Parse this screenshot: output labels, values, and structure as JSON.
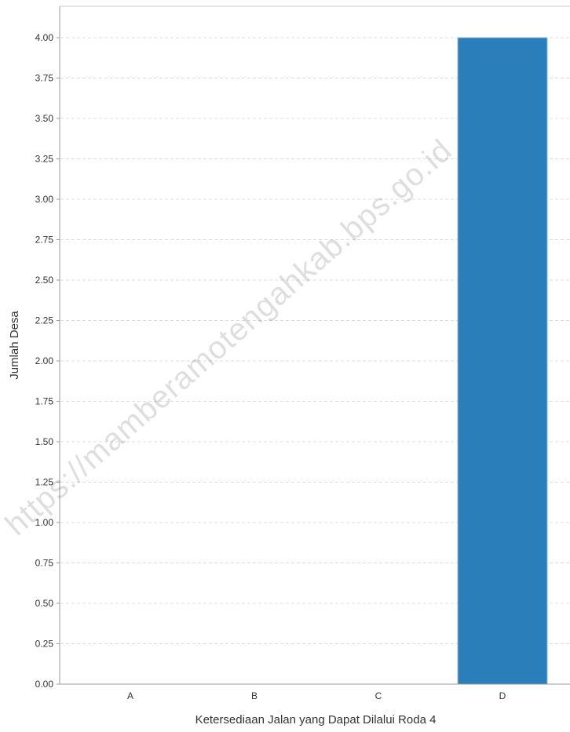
{
  "chart_data": {
    "type": "bar",
    "title": "",
    "xlabel": "Ketersediaan Jalan yang Dapat Dilalui Roda 4",
    "ylabel": "Jumlah Desa",
    "categories": [
      "A",
      "B",
      "C",
      "D"
    ],
    "values": [
      0,
      0,
      0,
      4
    ],
    "ylim": [
      0,
      4
    ],
    "yticks": [
      "0.00",
      "0.25",
      "0.50",
      "0.75",
      "1.00",
      "1.25",
      "1.50",
      "1.75",
      "2.00",
      "2.25",
      "2.50",
      "2.75",
      "3.00",
      "3.25",
      "3.50",
      "3.75",
      "4.00"
    ],
    "grid": true,
    "legend": "none",
    "bar_color": "#2a7fba"
  },
  "watermark": "https://mamberamotengahkab.bps.go.id"
}
